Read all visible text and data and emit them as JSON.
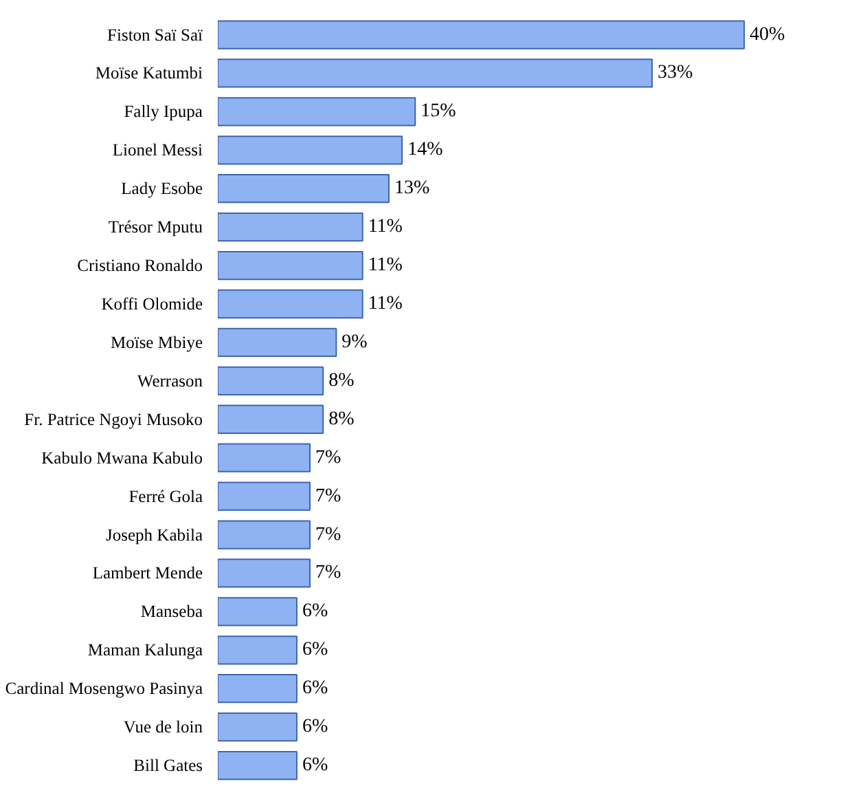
{
  "chart_data": {
    "type": "bar",
    "orientation": "horizontal",
    "categories": [
      "Fiston Saï Saï",
      "Moïse Katumbi",
      "Fally Ipupa",
      "Lionel Messi",
      "Lady Esobe",
      "Trésor Mputu",
      "Cristiano Ronaldo",
      "Koffi Olomide",
      "Moïse Mbiye",
      "Werrason",
      "Fr. Patrice Ngoyi Musoko",
      "Kabulo Mwana Kabulo",
      "Ferré Gola",
      "Joseph Kabila",
      "Lambert Mende",
      "Manseba",
      "Maman Kalunga",
      "Cardinal Mosengwo Pasinya",
      "Vue de loin",
      "Bill Gates"
    ],
    "values": [
      40,
      33,
      15,
      14,
      13,
      11,
      11,
      11,
      9,
      8,
      8,
      7,
      7,
      7,
      7,
      6,
      6,
      6,
      6,
      6
    ],
    "value_labels": [
      "40%",
      "33%",
      "15%",
      "14%",
      "13%",
      "11%",
      "11%",
      "11%",
      "9%",
      "8%",
      "8%",
      "7%",
      "7%",
      "7%",
      "7%",
      "6%",
      "6%",
      "6%",
      "6%",
      "6%"
    ],
    "color": "#8fb3f2",
    "grid": false
  }
}
